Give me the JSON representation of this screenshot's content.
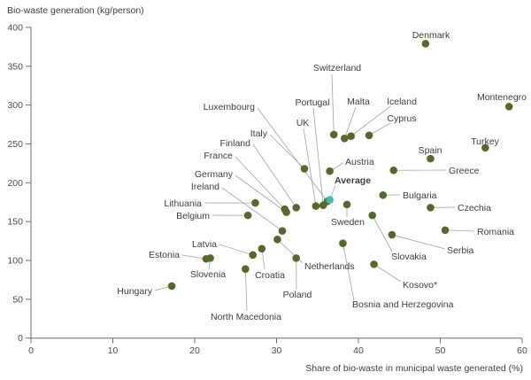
{
  "title": "Bio-waste generation (kg/person)",
  "colors": {
    "point": "#57682c",
    "average": "#45b7b8",
    "label_text": "#3d3d3d",
    "axis": "#6e6e6e",
    "connector": "#a3a3a3"
  },
  "chart_data": {
    "type": "scatter",
    "title": "Bio-waste generation (kg/person)",
    "xlabel": "Share of bio-waste in municipal waste generated (%)",
    "ylabel": "Bio-waste generation (kg/person)",
    "xlim": [
      0,
      60
    ],
    "ylim": [
      0,
      400
    ],
    "x_ticks": [
      0,
      10,
      20,
      30,
      40,
      50,
      60
    ],
    "y_ticks": [
      0,
      50,
      100,
      150,
      200,
      250,
      300,
      350,
      400
    ],
    "grid": false,
    "legend": "none",
    "points": [
      {
        "name": "Hungary",
        "share": 17.2,
        "kg": 67,
        "anchor": "end",
        "label": [
          172,
          332
        ],
        "line_from": [
          175,
          328
        ]
      },
      {
        "name": "Estonia",
        "share": 21.4,
        "kg": 102,
        "anchor": "end",
        "label": [
          203,
          291
        ],
        "line_from": [
          206,
          288
        ]
      },
      {
        "name": "Slovenia",
        "share": 21.9,
        "kg": 103,
        "anchor": "middle",
        "label": [
          235,
          313
        ],
        "line_from": [
          236,
          304
        ]
      },
      {
        "name": "North Macedonia",
        "share": 26.2,
        "kg": 89,
        "anchor": "middle",
        "label": [
          278,
          361
        ],
        "line_from": [
          279,
          351
        ]
      },
      {
        "name": "Belgium",
        "share": 26.5,
        "kg": 158,
        "anchor": "end",
        "label": [
          237,
          247
        ],
        "line_from": [
          240,
          243
        ]
      },
      {
        "name": "Latvia",
        "share": 27.1,
        "kg": 107,
        "anchor": "end",
        "label": [
          245,
          279
        ],
        "line_from": [
          248,
          276
        ]
      },
      {
        "name": "Lithuania",
        "share": 27.4,
        "kg": 174,
        "anchor": "end",
        "label": [
          228,
          233
        ],
        "line_from": [
          231,
          229
        ]
      },
      {
        "name": "Croatia",
        "share": 28.2,
        "kg": 115,
        "anchor": "middle",
        "label": [
          305,
          314
        ],
        "line_from": [
          299,
          304
        ]
      },
      {
        "name": "Netherlands",
        "share": 30.1,
        "kg": 127,
        "anchor": "start",
        "label": [
          344,
          304
        ],
        "line_from": [
          342,
          297
        ]
      },
      {
        "name": "Ireland",
        "share": 30.7,
        "kg": 138,
        "anchor": "end",
        "label": [
          248,
          214
        ],
        "line_from": [
          251,
          212
        ]
      },
      {
        "name": "France",
        "share": 31.0,
        "kg": 166,
        "anchor": "end",
        "label": [
          263,
          179
        ],
        "line_from": [
          266,
          177
        ]
      },
      {
        "name": "Germany",
        "share": 31.2,
        "kg": 162,
        "anchor": "end",
        "label": [
          263,
          200
        ],
        "line_from": [
          266,
          198
        ]
      },
      {
        "name": "Poland",
        "share": 32.4,
        "kg": 103,
        "anchor": "middle",
        "label": [
          336,
          336
        ],
        "line_from": [
          335,
          327
        ]
      },
      {
        "name": "Finland",
        "share": 32.4,
        "kg": 168,
        "anchor": "end",
        "label": [
          283,
          165
        ],
        "line_from": [
          286,
          163
        ]
      },
      {
        "name": "Italy",
        "share": 33.4,
        "kg": 218,
        "anchor": "end",
        "label": [
          302,
          154
        ],
        "line_from": [
          305,
          152
        ]
      },
      {
        "name": "UK",
        "share": 34.8,
        "kg": 170,
        "anchor": "middle",
        "label": [
          342,
          142
        ],
        "line_from": [
          343,
          145
        ]
      },
      {
        "name": "Portugal",
        "share": 35.7,
        "kg": 171,
        "anchor": "middle",
        "label": [
          353,
          119
        ],
        "line_from": [
          354,
          122
        ]
      },
      {
        "name": "Luxembourg",
        "share": 36.2,
        "kg": 176,
        "anchor": "end",
        "label": [
          288,
          124
        ],
        "line_from": [
          291,
          122
        ]
      },
      {
        "name": "Average",
        "share": 36.5,
        "kg": 178,
        "anchor": "start",
        "label": [
          378,
          207
        ],
        "line_from": [
          379,
          209
        ],
        "average": true
      },
      {
        "name": "Austria",
        "share": 36.5,
        "kg": 215,
        "anchor": "start",
        "label": [
          390,
          186
        ],
        "line_from": [
          388,
          184
        ]
      },
      {
        "name": "Switzerland",
        "share": 37.0,
        "kg": 262,
        "anchor": "middle",
        "label": [
          381,
          80
        ],
        "line_from": [
          375,
          84
        ]
      },
      {
        "name": "Bosnia and Herzegovina",
        "share": 38.1,
        "kg": 122,
        "anchor": "start",
        "label": [
          398,
          347
        ],
        "line_from": [
          400,
          339
        ]
      },
      {
        "name": "Malta",
        "share": 38.3,
        "kg": 257,
        "anchor": "middle",
        "label": [
          405,
          118
        ],
        "line_from": [
          402,
          121
        ]
      },
      {
        "name": "Sweden",
        "share": 38.6,
        "kg": 172,
        "anchor": "middle",
        "label": [
          393,
          254
        ],
        "line_from": [
          392,
          245
        ]
      },
      {
        "name": "Iceland",
        "share": 39.1,
        "kg": 260,
        "anchor": "middle",
        "label": [
          454,
          118
        ],
        "line_from": [
          441,
          120
        ]
      },
      {
        "name": "Cyprus",
        "share": 41.3,
        "kg": 261,
        "anchor": "middle",
        "label": [
          454,
          137
        ],
        "line_from": [
          441,
          139
        ]
      },
      {
        "name": "Slovakia",
        "share": 41.7,
        "kg": 158,
        "anchor": "middle",
        "label": [
          462,
          293
        ],
        "line_from": [
          443,
          284
        ]
      },
      {
        "name": "Kosovo*",
        "share": 41.9,
        "kg": 95,
        "anchor": "start",
        "label": [
          455,
          325
        ],
        "line_from": [
          453,
          318
        ]
      },
      {
        "name": "Bulgaria",
        "share": 43.0,
        "kg": 184,
        "anchor": "start",
        "label": [
          455,
          224
        ],
        "line_from": [
          452,
          220
        ]
      },
      {
        "name": "Serbia",
        "share": 44.1,
        "kg": 133,
        "anchor": "start",
        "label": [
          505,
          286
        ],
        "line_from": [
          503,
          281
        ]
      },
      {
        "name": "Greece",
        "share": 44.3,
        "kg": 216,
        "anchor": "start",
        "label": [
          507,
          196
        ],
        "line_from": [
          504,
          192
        ]
      },
      {
        "name": "Denmark",
        "share": 48.2,
        "kg": 379,
        "anchor": "middle",
        "label": [
          487,
          43
        ],
        "line_from": null
      },
      {
        "name": "Czechia",
        "share": 48.8,
        "kg": 168,
        "anchor": "start",
        "label": [
          517,
          238
        ],
        "line_from": [
          514,
          234
        ]
      },
      {
        "name": "Spain",
        "share": 48.8,
        "kg": 231,
        "anchor": "middle",
        "label": [
          486,
          173
        ],
        "line_from": null
      },
      {
        "name": "Romania",
        "share": 50.6,
        "kg": 139,
        "anchor": "start",
        "label": [
          539,
          265
        ],
        "line_from": [
          536,
          261
        ]
      },
      {
        "name": "Turkey",
        "share": 55.5,
        "kg": 245,
        "anchor": "middle",
        "label": [
          548,
          163
        ],
        "line_from": null
      },
      {
        "name": "Montenegro",
        "share": 58.4,
        "kg": 298,
        "anchor": "middle",
        "label": [
          567,
          113
        ],
        "line_from": null
      }
    ]
  }
}
